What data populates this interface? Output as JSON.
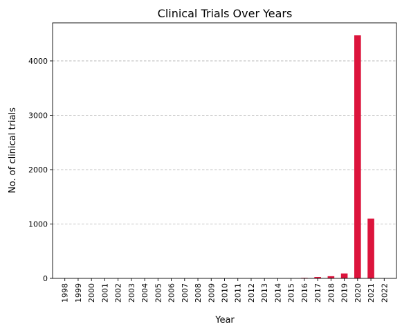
{
  "chart_data": {
    "type": "bar",
    "title": "Clinical Trials Over Years",
    "xlabel": "Year",
    "ylabel": "No. of clinical trials",
    "categories": [
      "1998",
      "1999",
      "2000",
      "2001",
      "2002",
      "2003",
      "2004",
      "2005",
      "2006",
      "2007",
      "2008",
      "2009",
      "2010",
      "2011",
      "2012",
      "2013",
      "2014",
      "2015",
      "2016",
      "2017",
      "2018",
      "2019",
      "2020",
      "2021",
      "2022"
    ],
    "values": [
      0,
      0,
      0,
      0,
      0,
      0,
      0,
      0,
      0,
      0,
      0,
      0,
      0,
      0,
      0,
      0,
      0,
      0,
      10,
      25,
      40,
      90,
      4470,
      1100,
      0
    ],
    "ylim": [
      0,
      4700
    ],
    "yticks": [
      0,
      1000,
      2000,
      3000,
      4000
    ],
    "grid": "y",
    "bar_color": "#dc143c"
  }
}
